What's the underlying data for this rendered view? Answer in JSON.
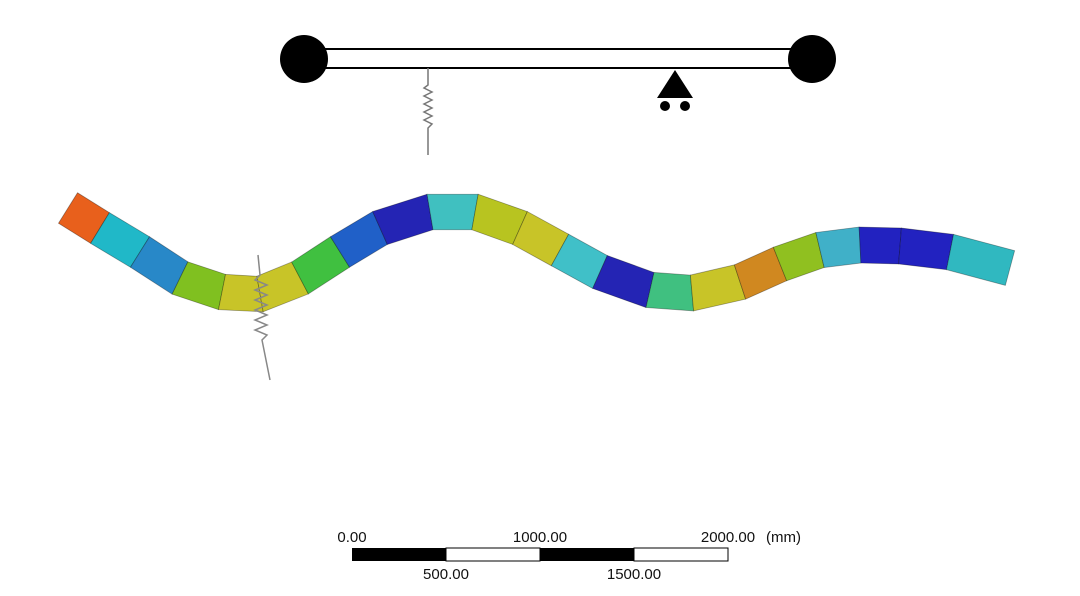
{
  "scale_bar": {
    "top_labels": [
      "0.00",
      "1000.00",
      "2000.00"
    ],
    "unit": "(mm)",
    "bottom_labels": [
      "500.00",
      "1500.00"
    ]
  }
}
